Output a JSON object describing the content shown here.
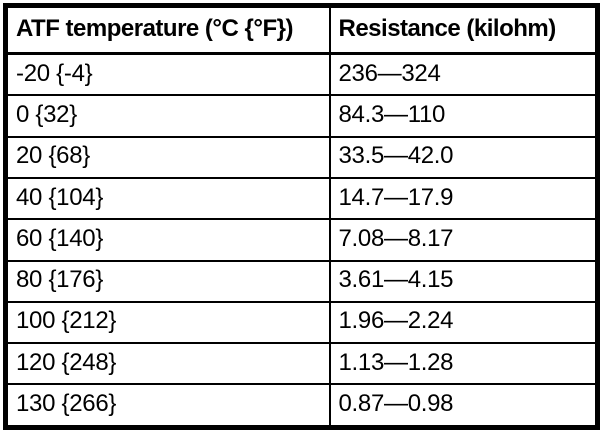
{
  "table": {
    "headers": {
      "temperature": "ATF temperature (°C {°F})",
      "resistance": "Resistance (kilohm)"
    },
    "rows": [
      {
        "temperature": "-20 {-4}",
        "resistance": "236—324"
      },
      {
        "temperature": "0 {32}",
        "resistance": "84.3—110"
      },
      {
        "temperature": "20 {68}",
        "resistance": "33.5—42.0"
      },
      {
        "temperature": "40 {104}",
        "resistance": "14.7—17.9"
      },
      {
        "temperature": "60 {140}",
        "resistance": "7.08—8.17"
      },
      {
        "temperature": "80 {176}",
        "resistance": "3.61—4.15"
      },
      {
        "temperature": "100 {212}",
        "resistance": "1.96—2.24"
      },
      {
        "temperature": "120 {248}",
        "resistance": "1.13—1.28"
      },
      {
        "temperature": "130 {266}",
        "resistance": "0.87—0.98"
      }
    ]
  },
  "colors": {
    "border": "#000000",
    "background": "#ffffff",
    "text": "#000000"
  }
}
